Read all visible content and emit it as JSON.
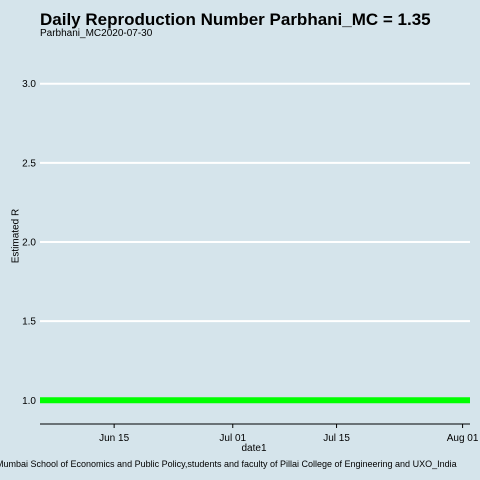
{
  "chart_data": {
    "type": "line",
    "title": "Daily Reproduction Number Parbhani_MC = 1.35",
    "subtitle": "Parbhani_MC2020-07-30",
    "xlabel": "date1",
    "ylabel": "Estimated R",
    "caption": "Mumbai School of Economics and Public Policy,students and faculty of Pillai College of Engineering and UXO_India",
    "xlim": [
      "2020-06-05",
      "2020-08-02"
    ],
    "ylim": [
      0.85,
      3.15
    ],
    "x_ticks": [
      {
        "date": "2020-06-15",
        "label": "Jun 15"
      },
      {
        "date": "2020-07-01",
        "label": "Jul 01"
      },
      {
        "date": "2020-07-15",
        "label": "Jul 15"
      },
      {
        "date": "2020-08-01",
        "label": "Aug 01"
      }
    ],
    "y_ticks": [
      1.0,
      1.5,
      2.0,
      2.5,
      3.0
    ],
    "y_tick_labels": [
      "1.0",
      "1.5",
      "2.0",
      "2.5",
      "3.0"
    ],
    "grid": "horizontal",
    "series": [
      {
        "color": "#00ff00",
        "x": [
          "2020-06-05",
          "2020-08-02"
        ],
        "y": [
          1.0,
          1.0
        ]
      }
    ]
  }
}
